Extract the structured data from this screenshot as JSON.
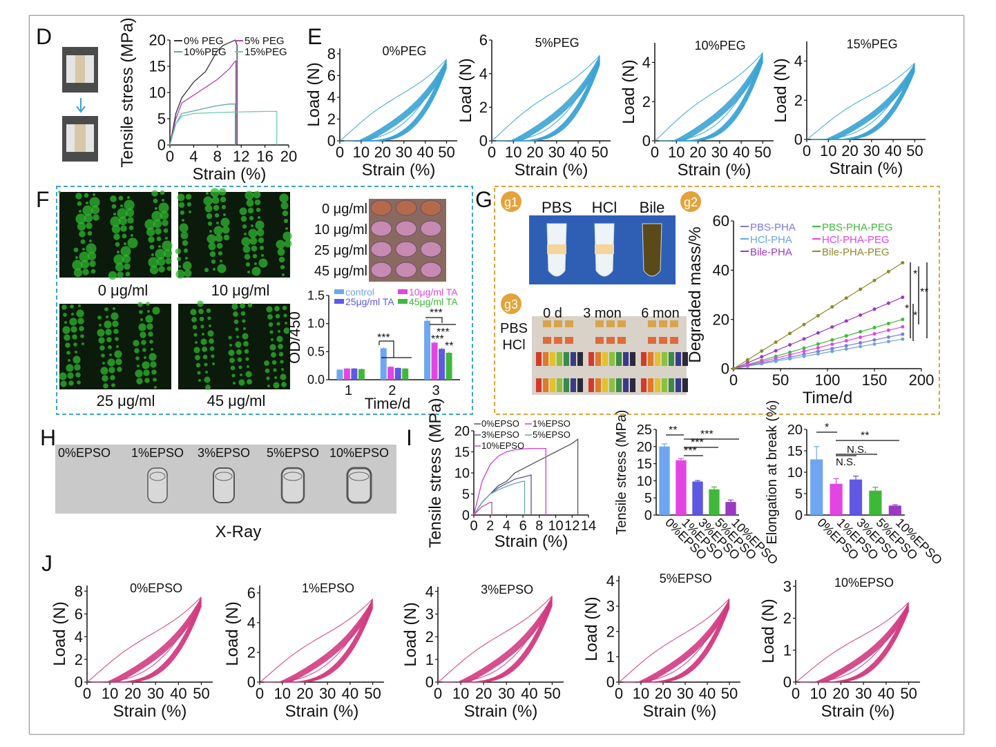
{
  "panel_letters": [
    "D",
    "E",
    "F",
    "G",
    "H",
    "I",
    "J"
  ],
  "g_sublabels": [
    "g1",
    "g2",
    "g3"
  ],
  "photo_labels": {
    "g1_tubes": [
      "PBS",
      "HCl",
      "Bile"
    ],
    "g3_times": [
      "0 d",
      "3 mon",
      "6 mon"
    ],
    "g3_rows": [
      "PBS",
      "HCl"
    ],
    "f_wells": [
      "0 μg/ml",
      "10 μg/ml",
      "25 μg/ml",
      "45 μg/ml"
    ],
    "f_fluor": [
      "0 μg/ml",
      "10 μg/ml",
      "25 μg/ml",
      "45 μg/ml"
    ],
    "h_samples": [
      "0%EPSO",
      "1%EPSO",
      "3%EPSO",
      "5%EPSO",
      "10%EPSO"
    ],
    "h_caption": "X-Ray"
  },
  "colors": {
    "cyclic_blue": "#3aa3d4",
    "cyclic_pink": "#d2397f",
    "orange_box": "#e3a33a",
    "blue_box": "#3aa3d4"
  },
  "chart_data": [
    {
      "id": "D",
      "type": "line",
      "xlabel": "Strain (%)",
      "ylabel": "Tensile stress (MPa)",
      "xlim": [
        0,
        20
      ],
      "ylim": [
        0,
        20
      ],
      "xticks": [
        "0",
        "4",
        "8",
        "12",
        "16",
        "20"
      ],
      "yticks": [
        "0",
        "5",
        "10",
        "15",
        "20"
      ],
      "series": [
        {
          "name": "0% PEG",
          "color": "#333333",
          "x": [
            0,
            1,
            2,
            4,
            6,
            7,
            8,
            9,
            10,
            11,
            11.3,
            11.3
          ],
          "y": [
            0,
            6,
            9,
            12,
            14,
            16,
            18,
            19,
            19.5,
            20,
            19,
            0
          ]
        },
        {
          "name": "5% PEG",
          "color": "#b63bc2",
          "x": [
            0,
            1,
            2,
            4,
            6,
            8,
            9,
            10,
            11,
            11.1,
            11.1
          ],
          "y": [
            0,
            5,
            8,
            9.5,
            11,
            12.5,
            13.5,
            14.5,
            16,
            16,
            0
          ]
        },
        {
          "name": "10%PEG",
          "color": "#5aa9a2",
          "x": [
            0,
            1,
            2,
            4,
            6,
            8,
            10,
            11,
            11,
            11
          ],
          "y": [
            0,
            4,
            6,
            6.5,
            7,
            7.5,
            7.8,
            7.8,
            7.8,
            0
          ]
        },
        {
          "name": "15%PEG",
          "color": "#6dc8b2",
          "x": [
            0,
            1,
            2,
            4,
            8,
            12,
            16,
            18,
            18
          ],
          "y": [
            0,
            4,
            5.5,
            6,
            6.2,
            6.3,
            6.4,
            6.4,
            0
          ]
        }
      ]
    },
    {
      "id": "E1",
      "type": "line",
      "title": "0%PEG",
      "xlabel": "Strain (%)",
      "ylabel": "Load (N)",
      "xlim": [
        0,
        55
      ],
      "ylim": [
        0,
        8.5
      ],
      "xticks": [
        "0",
        "10",
        "20",
        "30",
        "40",
        "50"
      ],
      "xtick_values": [
        0,
        10,
        20,
        30,
        40,
        50
      ],
      "yticks": [
        "0",
        "2",
        "4",
        "6",
        "8"
      ],
      "ytick_values": [
        0,
        2,
        4,
        6,
        8
      ],
      "cycles": 10,
      "peak": {
        "x": 50,
        "y": 7.5
      },
      "color": "#3aa3d4"
    },
    {
      "id": "E2",
      "type": "line",
      "title": "5%PEG",
      "xlabel": "Strain (%)",
      "ylabel": "Load (N)",
      "xlim": [
        0,
        55
      ],
      "ylim": [
        0,
        6
      ],
      "xticks": [
        "0",
        "10",
        "20",
        "30",
        "40",
        "50"
      ],
      "xtick_values": [
        0,
        10,
        20,
        30,
        40,
        50
      ],
      "yticks": [
        "0",
        "2",
        "4",
        "6"
      ],
      "ytick_values": [
        0,
        2,
        4,
        6
      ],
      "cycles": 10,
      "peak": {
        "x": 50,
        "y": 5.1
      },
      "color": "#3aa3d4"
    },
    {
      "id": "E3",
      "type": "line",
      "title": "10%PEG",
      "xlabel": "Strain (%)",
      "ylabel": "Load (N)",
      "xlim": [
        0,
        55
      ],
      "ylim": [
        0,
        5
      ],
      "xticks": [
        "0",
        "10",
        "20",
        "30",
        "40",
        "50"
      ],
      "xtick_values": [
        0,
        10,
        20,
        30,
        40,
        50
      ],
      "yticks": [
        "0",
        "2",
        "4"
      ],
      "ytick_values": [
        0,
        2,
        4
      ],
      "cycles": 10,
      "peak": {
        "x": 50,
        "y": 4.5
      },
      "color": "#3aa3d4"
    },
    {
      "id": "E4",
      "type": "line",
      "title": "15%PEG",
      "xlabel": "Strain (%)",
      "ylabel": "Load (N)",
      "xlim": [
        0,
        55
      ],
      "ylim": [
        0,
        5
      ],
      "xticks": [
        "0",
        "10",
        "20",
        "30",
        "40",
        "50"
      ],
      "xtick_values": [
        0,
        10,
        20,
        30,
        40,
        50
      ],
      "yticks": [
        "0",
        "2",
        "4"
      ],
      "ytick_values": [
        0,
        2,
        4
      ],
      "cycles": 10,
      "peak": {
        "x": 50,
        "y": 3.9
      },
      "color": "#3aa3d4"
    },
    {
      "id": "F",
      "type": "bar",
      "xlabel": "Time/d",
      "ylabel": "OD/450",
      "categories": [
        "1",
        "2",
        "3"
      ],
      "ylim": [
        0,
        1.5
      ],
      "yticks": [
        "0.0",
        "0.5",
        "1.0",
        "1.5"
      ],
      "ytick_values": [
        0,
        0.5,
        1.0,
        1.5
      ],
      "legend": "top",
      "series": [
        {
          "name": "control",
          "color": "#6ea6f2",
          "values": [
            0.18,
            0.56,
            1.05
          ],
          "err": [
            0.01,
            0.02,
            0.03
          ]
        },
        {
          "name": "10μg/ml TA",
          "color": "#e345e3",
          "values": [
            0.2,
            0.23,
            0.66
          ],
          "err": [
            0.01,
            0.01,
            0.02
          ]
        },
        {
          "name": "25μg/ml TA",
          "color": "#5d59e3",
          "values": [
            0.2,
            0.21,
            0.55
          ],
          "err": [
            0.01,
            0.01,
            0.02
          ]
        },
        {
          "name": "45μg/ml TA",
          "color": "#3fb83a",
          "values": [
            0.19,
            0.2,
            0.48
          ],
          "err": [
            0.01,
            0.01,
            0.02
          ]
        }
      ],
      "annotations": [
        "***",
        "***",
        "***",
        "***",
        "**"
      ]
    },
    {
      "id": "G2",
      "type": "line",
      "xlabel": "Time/d",
      "ylabel": "Degraded mass/%",
      "xlim": [
        0,
        200
      ],
      "ylim": [
        0,
        60
      ],
      "xticks": [
        "0",
        "50",
        "100",
        "150",
        "200"
      ],
      "xtick_values": [
        0,
        50,
        100,
        150,
        200
      ],
      "yticks": [
        "0",
        "20",
        "40",
        "60"
      ],
      "ytick_values": [
        0,
        20,
        40,
        60
      ],
      "x": [
        0,
        15,
        30,
        45,
        60,
        75,
        90,
        105,
        120,
        135,
        150,
        165,
        180
      ],
      "series": [
        {
          "name": "PBS-PHA",
          "color": "#7b7be0",
          "end": 14
        },
        {
          "name": "HCl-PHA",
          "color": "#6aa6e0",
          "end": 12
        },
        {
          "name": "Bile-PHA",
          "color": "#9b39c2",
          "end": 29
        },
        {
          "name": "PBS-PHA-PEG",
          "color": "#3fb83a",
          "end": 20
        },
        {
          "name": "HCl-PHA-PEG",
          "color": "#e345e3",
          "end": 17
        },
        {
          "name": "Bile-PHA-PEG",
          "color": "#8c8a2a",
          "end": 43
        }
      ],
      "annotations": [
        "*",
        "**",
        "*",
        "*"
      ]
    },
    {
      "id": "I1",
      "type": "line",
      "xlabel": "Strain (%)",
      "ylabel": "Tensile stress (MPa)",
      "xlim": [
        0,
        14
      ],
      "ylim": [
        0,
        20
      ],
      "xticks": [
        "0",
        "2",
        "4",
        "6",
        "8",
        "10",
        "12",
        "14"
      ],
      "xtick_values": [
        0,
        2,
        4,
        6,
        8,
        10,
        12,
        14
      ],
      "yticks": [
        "0",
        "5",
        "10",
        "15",
        "20"
      ],
      "ytick_values": [
        0,
        5,
        10,
        15,
        20
      ],
      "series": [
        {
          "name": "0%EPSO",
          "color": "#555555",
          "x": [
            0,
            1,
            2,
            3,
            4,
            5,
            6,
            7,
            8,
            9,
            10,
            11,
            12,
            12.7,
            12.7
          ],
          "y": [
            0,
            3,
            5,
            7,
            8,
            10,
            11,
            12,
            13,
            14,
            15,
            16,
            17,
            18,
            0
          ]
        },
        {
          "name": "1%EPSO",
          "color": "#d43bd4",
          "x": [
            0,
            0.5,
            1,
            2,
            3,
            4,
            5,
            6,
            7,
            8,
            8.8,
            8.8
          ],
          "y": [
            0,
            4,
            8,
            12,
            14,
            15,
            15.5,
            15.7,
            15.8,
            15.8,
            15.8,
            0
          ]
        },
        {
          "name": "3%EPSO",
          "color": "#5555aa",
          "x": [
            0,
            1,
            2,
            3,
            4,
            5,
            6,
            7,
            7,
            7
          ],
          "y": [
            0,
            3,
            5,
            6.5,
            7.5,
            8.5,
            9,
            9.5,
            9.5,
            0
          ]
        },
        {
          "name": "5%EPSO",
          "color": "#6aa6aa",
          "x": [
            0,
            1,
            2,
            3,
            4,
            5,
            6,
            6.2,
            6.2
          ],
          "y": [
            0,
            3,
            5,
            6,
            6.8,
            7.5,
            8,
            8,
            0
          ]
        },
        {
          "name": "10%EPSO",
          "color": "#bb5599",
          "x": [
            0,
            0.5,
            1,
            1.5,
            2,
            2.2,
            2.2
          ],
          "y": [
            0,
            1,
            2,
            2.5,
            3,
            3,
            0
          ]
        }
      ]
    },
    {
      "id": "I2",
      "type": "bar",
      "ylabel": "Tensile stress (MPa)",
      "categories": [
        "0%EPSO",
        "1%EPSO",
        "3%EPSO",
        "5%EPSO",
        "10%EPSO"
      ],
      "values": [
        20,
        16,
        9.8,
        7.5,
        3.8
      ],
      "err": [
        0.8,
        0.5,
        0.3,
        0.7,
        0.6
      ],
      "colors": [
        "#6ea6f2",
        "#e345e3",
        "#5d59e3",
        "#3fb83a",
        "#9b39c2"
      ],
      "ylim": [
        0,
        25
      ],
      "yticks": [
        "0",
        "5",
        "10",
        "15",
        "20",
        "25"
      ],
      "ytick_values": [
        0,
        5,
        10,
        15,
        20,
        25
      ],
      "annotations": [
        "**",
        "***",
        "***",
        "***"
      ]
    },
    {
      "id": "I3",
      "type": "bar",
      "ylabel": "Elongation at break (%)",
      "categories": [
        "0%EPSO",
        "1%EPSO",
        "3%EPSO",
        "5%EPSO",
        "10%EPSO"
      ],
      "values": [
        13,
        7.3,
        8.3,
        5.7,
        2.2
      ],
      "err": [
        3,
        1.2,
        0.8,
        0.8,
        0.2
      ],
      "colors": [
        "#6ea6f2",
        "#e345e3",
        "#5d59e3",
        "#3fb83a",
        "#9b39c2"
      ],
      "ylim": [
        0,
        20
      ],
      "yticks": [
        "0",
        "5",
        "10",
        "15",
        "20"
      ],
      "ytick_values": [
        0,
        5,
        10,
        15,
        20
      ],
      "annotations": [
        "*",
        "N.S.",
        "N.S.",
        "**"
      ]
    },
    {
      "id": "J1",
      "type": "line",
      "title": "0%EPSO",
      "xlabel": "Strain (%)",
      "ylabel": "Load (N)",
      "xlim": [
        0,
        55
      ],
      "ylim": [
        0,
        8.5
      ],
      "xticks": [
        "0",
        "10",
        "20",
        "30",
        "40",
        "50"
      ],
      "xtick_values": [
        0,
        10,
        20,
        30,
        40,
        50
      ],
      "yticks": [
        "0",
        "2",
        "4",
        "6",
        "8"
      ],
      "ytick_values": [
        0,
        2,
        4,
        6,
        8
      ],
      "cycles": 10,
      "peak": {
        "x": 50,
        "y": 7.5
      },
      "color": "#d2397f"
    },
    {
      "id": "J2",
      "type": "line",
      "title": "1%EPSO",
      "xlabel": "Strain (%)",
      "ylabel": "Load (N)",
      "xlim": [
        0,
        55
      ],
      "ylim": [
        0,
        6.5
      ],
      "xticks": [
        "0",
        "10",
        "20",
        "30",
        "40",
        "50"
      ],
      "xtick_values": [
        0,
        10,
        20,
        30,
        40,
        50
      ],
      "yticks": [
        "0",
        "2",
        "4",
        "6"
      ],
      "ytick_values": [
        0,
        2,
        4,
        6
      ],
      "cycles": 10,
      "peak": {
        "x": 50,
        "y": 5.6
      },
      "color": "#d2397f"
    },
    {
      "id": "J3",
      "type": "line",
      "title": "3%EPSO",
      "xlabel": "Strain (%)",
      "ylabel": "Load (N)",
      "xlim": [
        0,
        55
      ],
      "ylim": [
        0,
        4.2
      ],
      "xticks": [
        "0",
        "10",
        "20",
        "30",
        "40",
        "50"
      ],
      "xtick_values": [
        0,
        10,
        20,
        30,
        40,
        50
      ],
      "yticks": [
        "0",
        "1",
        "2",
        "3",
        "4"
      ],
      "ytick_values": [
        0,
        1,
        2,
        3,
        4
      ],
      "cycles": 10,
      "peak": {
        "x": 50,
        "y": 3.8
      },
      "color": "#d2397f"
    },
    {
      "id": "J4",
      "type": "line",
      "title": "5%EPSO",
      "xlabel": "Strain (%)",
      "ylabel": "Load (N)",
      "xlim": [
        0,
        55
      ],
      "ylim": [
        0,
        4.2
      ],
      "xticks": [
        "0",
        "10",
        "20",
        "30",
        "40",
        "50"
      ],
      "xtick_values": [
        0,
        10,
        20,
        30,
        40,
        50
      ],
      "yticks": [
        "0",
        "1",
        "2",
        "3",
        "4"
      ],
      "ytick_values": [
        0,
        1,
        2,
        3,
        4
      ],
      "cycles": 10,
      "peak": {
        "x": 50,
        "y": 3.3
      },
      "color": "#d2397f"
    },
    {
      "id": "J5",
      "type": "line",
      "title": "10%EPSO",
      "xlabel": "Strain (%)",
      "ylabel": "Load (N)",
      "xlim": [
        0,
        55
      ],
      "ylim": [
        0,
        3.2
      ],
      "xticks": [
        "0",
        "10",
        "20",
        "30",
        "40",
        "50"
      ],
      "xtick_values": [
        0,
        10,
        20,
        30,
        40,
        50
      ],
      "yticks": [
        "0",
        "1",
        "2",
        "3"
      ],
      "ytick_values": [
        0,
        1,
        2,
        3
      ],
      "cycles": 10,
      "peak": {
        "x": 50,
        "y": 2.5
      },
      "color": "#d2397f"
    }
  ]
}
